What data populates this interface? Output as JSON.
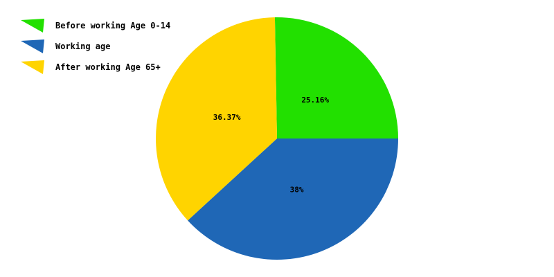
{
  "chart_data": {
    "type": "pie",
    "title": "",
    "legend_position": "top-left",
    "slices": [
      {
        "name": "Before working Age 0-14",
        "value": 25.16,
        "label": "25.16%",
        "color": "#22e000"
      },
      {
        "name": "Working age",
        "value": 38,
        "label": "38%",
        "color": "#1f67b6"
      },
      {
        "name": "After working Age 65+",
        "value": 36.37,
        "label": "36.37%",
        "color": "#ffd400"
      }
    ]
  }
}
